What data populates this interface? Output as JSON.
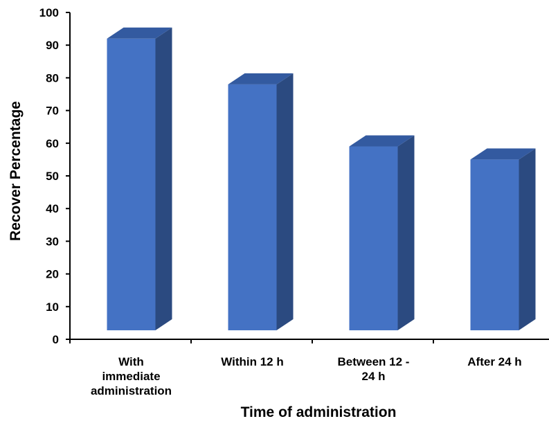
{
  "chart_data": {
    "type": "bar",
    "title": "",
    "xlabel": "Time of administration",
    "ylabel": "Recover Percentage",
    "categories": [
      [
        "With",
        "immediate",
        "administration"
      ],
      [
        "Within 12 h"
      ],
      [
        "Between 12 -",
        "24 h"
      ],
      [
        "After 24 h"
      ]
    ],
    "values": [
      92,
      78,
      59,
      55
    ],
    "ylim": [
      0,
      100
    ],
    "yticks": [
      0,
      10,
      20,
      30,
      40,
      50,
      60,
      70,
      80,
      90,
      100
    ],
    "style": "3d",
    "grid": false,
    "legend": "none",
    "colors": {
      "bar_front": "#4472C4",
      "bar_side": "#2B4A80",
      "bar_top": "#335AA0",
      "axis": "#000000"
    }
  }
}
